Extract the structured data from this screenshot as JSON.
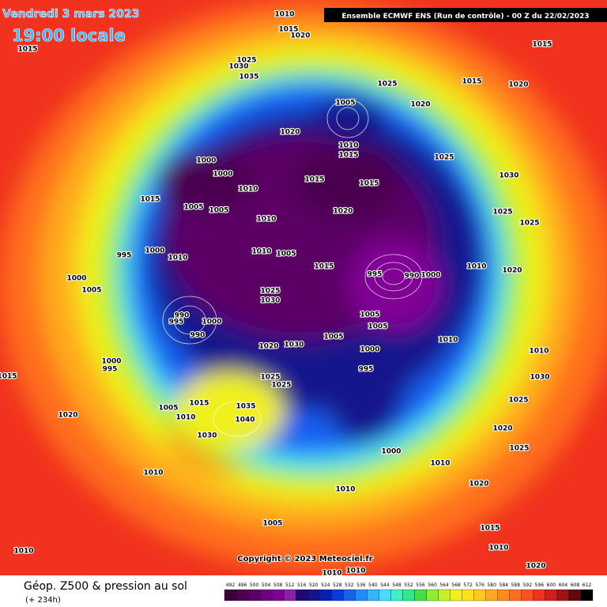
{
  "header": {
    "date": "Vendredi 3 mars 2023",
    "time": "19:00 locale",
    "run": "Ensemble ECMWF ENS  (Run de contrôle)  -  00 Z du 22/02/2023"
  },
  "copyright": "Copyright © 2023 Meteociel.fr",
  "footer": {
    "title": "Géop. Z500 & pression au sol",
    "lead": "(+ 234h)"
  },
  "colorbar": {
    "levels": [
      492,
      496,
      500,
      504,
      508,
      512,
      516,
      520,
      524,
      528,
      532,
      536,
      540,
      544,
      548,
      552,
      556,
      560,
      564,
      568,
      572,
      576,
      580,
      584,
      588,
      592,
      596,
      600,
      604,
      608,
      612
    ],
    "colors": [
      "#3d0037",
      "#4b0050",
      "#5c0066",
      "#6d007d",
      "#800094",
      "#8a20a8",
      "#1e0a70",
      "#14148c",
      "#0a1fb4",
      "#0a3adc",
      "#1460f0",
      "#1e8cff",
      "#32b4ff",
      "#46dcff",
      "#3cf0c8",
      "#32e68c",
      "#46dc46",
      "#8cf032",
      "#c8f028",
      "#f0f01e",
      "#ffe11e",
      "#ffc81e",
      "#ffaa1e",
      "#ff8c1e",
      "#ff6e1e",
      "#ff501e",
      "#f0321e",
      "#d21e1e",
      "#a01414",
      "#640a0a",
      "#000000"
    ]
  },
  "isobar_labels": [
    1010,
    1015,
    1020,
    1015,
    1025,
    1030,
    1035,
    1025,
    1015,
    1020,
    1015,
    1005,
    1020,
    1020,
    1010,
    1015,
    1025,
    1000,
    1000,
    1010,
    1015,
    1015,
    1015,
    1005,
    1005,
    1010,
    1020,
    1030,
    1025,
    1025,
    995,
    1000,
    1010,
    1010,
    1005,
    1015,
    995,
    990,
    1000,
    1010,
    1020,
    1000,
    1005,
    1025,
    1030,
    990,
    995,
    1000,
    990,
    1005,
    1005,
    1005,
    1030,
    1020,
    1000,
    1010,
    995,
    1010,
    1000,
    995,
    1015,
    1025,
    1025,
    1030,
    1005,
    1010,
    1015,
    1035,
    1040,
    1030,
    1020,
    1025,
    1020,
    1000,
    1010,
    1025,
    1010,
    1010,
    1005,
    1020,
    1015,
    1010,
    1020,
    1010,
    1010,
    1010
  ]
}
